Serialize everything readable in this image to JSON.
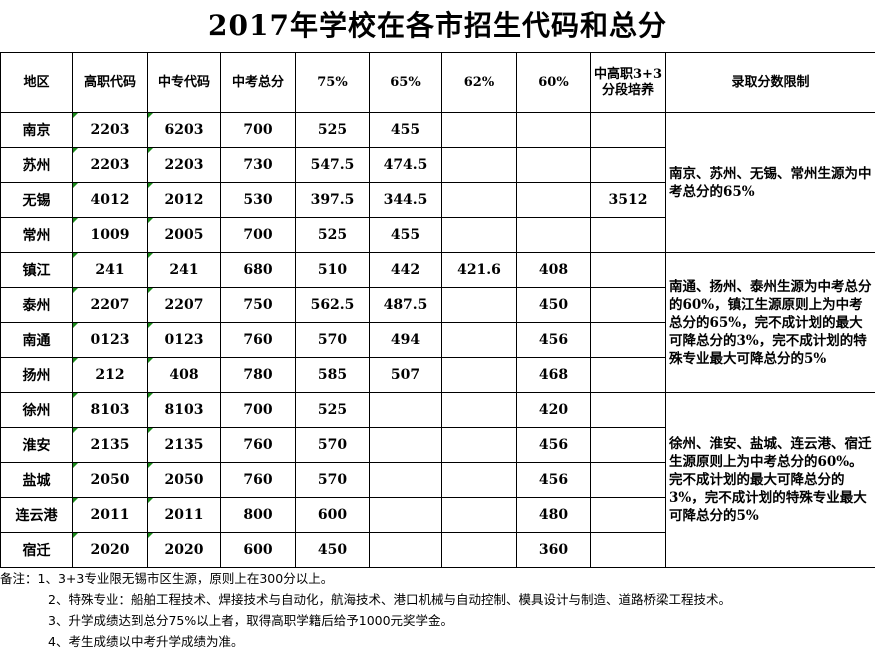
{
  "title": "2017年学校在各市招生代码和总分",
  "headers": [
    "地区",
    "高职代码",
    "中专代码",
    "中考总分",
    "75%",
    "65%",
    "62%",
    "60%",
    "中高职3+3分段培养",
    "录取分数限制"
  ],
  "rows": [
    [
      "南京",
      "2203",
      "6203",
      "700",
      "525",
      "455",
      "",
      "",
      ""
    ],
    [
      "苏州",
      "2203",
      "2203",
      "730",
      "547.5",
      "474.5",
      "",
      "",
      ""
    ],
    [
      "无锡",
      "4012",
      "2012",
      "530",
      "397.5",
      "344.5",
      "",
      "",
      "3512"
    ],
    [
      "常州",
      "1009",
      "2005",
      "700",
      "525",
      "455",
      "",
      "",
      ""
    ],
    [
      "镇江",
      "241",
      "241",
      "680",
      "510",
      "442",
      "421.6",
      "408",
      ""
    ],
    [
      "泰州",
      "2207",
      "2207",
      "750",
      "562.5",
      "487.5",
      "",
      "450",
      ""
    ],
    [
      "南通",
      "0123",
      "0123",
      "760",
      "570",
      "494",
      "",
      "456",
      ""
    ],
    [
      "扬州",
      "212",
      "408",
      "780",
      "585",
      "507",
      "",
      "468",
      ""
    ],
    [
      "徐州",
      "8103",
      "8103",
      "700",
      "525",
      "",
      "",
      "420",
      ""
    ],
    [
      "淮安",
      "2135",
      "2135",
      "760",
      "570",
      "",
      "",
      "456",
      ""
    ],
    [
      "盐城",
      "2050",
      "2050",
      "760",
      "570",
      "",
      "",
      "456",
      ""
    ],
    [
      "连云港",
      "2011",
      "2011",
      "800",
      "600",
      "",
      "",
      "480",
      ""
    ],
    [
      "宿迁",
      "2020",
      "2020",
      "600",
      "450",
      "",
      "",
      "360",
      ""
    ]
  ],
  "limits": [
    "南京、苏州、无锡、常州生源为中考总分的65%",
    "南通、扬州、泰州生源为中考总分的60%，镇江生源原则上为中考总分的65%，完不成计划的最大可降总分的3%，完不成计划的特殊专业最大可降总分的5%",
    "徐州、淮安、盐城、连云港、宿迁生源原则上为中考总分的60%。完不成计划的最大可降总分的3%，完不成计划的特殊专业最大可降总分的5%"
  ],
  "notes": [
    "备注：1、3+3专业限无锡市区生源，原则上在300分以上。",
    "2、特殊专业：船舶工程技术、焊接技术与自动化，航海技术、港口机械与自动控制、模具设计与制造、道路桥梁工程技术。",
    "3、升学成绩达到总分75%以上者，取得高职学籍后给予1000元奖学金。",
    "4、考生成绩以中考升学成绩为准。"
  ]
}
